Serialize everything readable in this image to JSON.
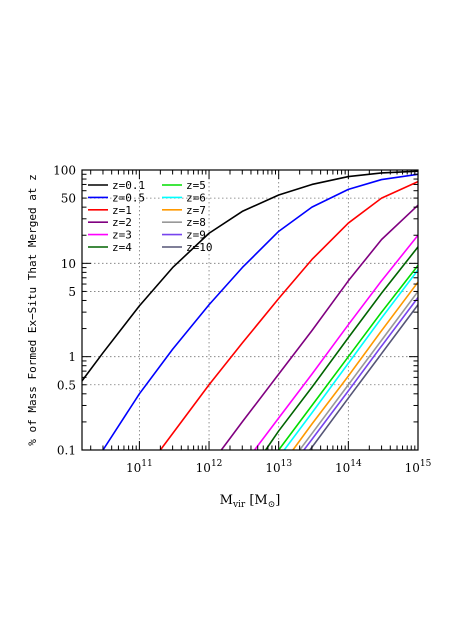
{
  "chart_data": {
    "type": "line",
    "title": "",
    "xlabel": "M_vir [M_⊙]",
    "xlabel_main": "M",
    "xlabel_sub": "vir",
    "xlabel_unit_open": " [M",
    "xlabel_unit_sub": "⊙",
    "xlabel_unit_close": "]",
    "ylabel": "% of Mass Formed Ex−Situ That Merged at z",
    "x_scale": "log",
    "y_scale": "log",
    "xlim": [
      15000000000,
      1000000000000000
    ],
    "ylim": [
      0.1,
      100
    ],
    "x_ticks": [
      {
        "value": 100000000000,
        "base": "10",
        "exp": "11"
      },
      {
        "value": 1000000000000,
        "base": "10",
        "exp": "12"
      },
      {
        "value": 10000000000000,
        "base": "10",
        "exp": "13"
      },
      {
        "value": 100000000000000,
        "base": "10",
        "exp": "14"
      },
      {
        "value": 1000000000000000,
        "base": "10",
        "exp": "15"
      }
    ],
    "y_ticks": [
      {
        "value": 0.1,
        "label": "0.1"
      },
      {
        "value": 0.5,
        "label": "0.5"
      },
      {
        "value": 1,
        "label": "1"
      },
      {
        "value": 5,
        "label": "5"
      },
      {
        "value": 10,
        "label": "10"
      },
      {
        "value": 50,
        "label": "50"
      },
      {
        "value": 100,
        "label": "100"
      }
    ],
    "grid": "dotted",
    "legend_position": "top-left",
    "series": [
      {
        "name": "z=0.1",
        "color": "#000000",
        "x": [
          15000000000.0,
          30000000000.0,
          100000000000.0,
          300000000000.0,
          1000000000000.0,
          3000000000000.0,
          10000000000000.0,
          30000000000000.0,
          100000000000000.0,
          300000000000000.0,
          1000000000000000.0
        ],
        "y": [
          0.55,
          1.1,
          3.5,
          9,
          21,
          36,
          54,
          70,
          85,
          93,
          97
        ]
      },
      {
        "name": "z=0.5",
        "color": "#0000ff",
        "x": [
          30000000000.0,
          100000000000.0,
          300000000000.0,
          1000000000000.0,
          3000000000000.0,
          10000000000000.0,
          30000000000000.0,
          100000000000000.0,
          300000000000000.0,
          1000000000000000.0
        ],
        "y": [
          0.1,
          0.4,
          1.2,
          3.6,
          9,
          22,
          40,
          62,
          79,
          90
        ]
      },
      {
        "name": "z=1",
        "color": "#ff0000",
        "x": [
          200000000000.0,
          500000000000.0,
          1000000000000.0,
          3000000000000.0,
          10000000000000.0,
          30000000000000.0,
          100000000000000.0,
          300000000000000.0,
          1000000000000000.0
        ],
        "y": [
          0.1,
          0.25,
          0.5,
          1.4,
          4.2,
          11,
          27,
          50,
          75
        ]
      },
      {
        "name": "z=2",
        "color": "#800080",
        "x": [
          1500000000000.0,
          3000000000000.0,
          10000000000000.0,
          30000000000000.0,
          100000000000000.0,
          300000000000000.0,
          1000000000000000.0
        ],
        "y": [
          0.1,
          0.2,
          0.65,
          1.9,
          6.5,
          18,
          42
        ]
      },
      {
        "name": "z=3",
        "color": "#ff00ff",
        "x": [
          4500000000000.0,
          10000000000000.0,
          30000000000000.0,
          100000000000000.0,
          300000000000000.0,
          1000000000000000.0
        ],
        "y": [
          0.1,
          0.22,
          0.65,
          2.2,
          6.5,
          20
        ]
      },
      {
        "name": "z=4",
        "color": "#006400",
        "x": [
          6500000000000.0,
          10000000000000.0,
          30000000000000.0,
          100000000000000.0,
          300000000000000.0,
          1000000000000000.0
        ],
        "y": [
          0.1,
          0.16,
          0.47,
          1.6,
          4.8,
          15
        ]
      },
      {
        "name": "z=5",
        "color": "#00dd00",
        "x": [
          10000000000000.0,
          30000000000000.0,
          100000000000000.0,
          300000000000000.0,
          1000000000000000.0
        ],
        "y": [
          0.1,
          0.3,
          1.0,
          3.0,
          9.5
        ]
      },
      {
        "name": "z=6",
        "color": "#00ffff",
        "x": [
          12000000000000.0,
          30000000000000.0,
          100000000000000.0,
          300000000000000.0,
          1000000000000000.0
        ],
        "y": [
          0.1,
          0.25,
          0.85,
          2.6,
          8.5
        ]
      },
      {
        "name": "z=7",
        "color": "#ff9900",
        "x": [
          16000000000000.0,
          30000000000000.0,
          100000000000000.0,
          300000000000000.0,
          1000000000000000.0
        ],
        "y": [
          0.1,
          0.19,
          0.62,
          1.9,
          6.3
        ]
      },
      {
        "name": "z=8",
        "color": "#999999",
        "x": [
          20000000000000.0,
          30000000000000.0,
          100000000000000.0,
          300000000000000.0,
          1000000000000000.0
        ],
        "y": [
          0.1,
          0.15,
          0.5,
          1.5,
          5.0
        ]
      },
      {
        "name": "z=9",
        "color": "#7744ee",
        "x": [
          23000000000000.0,
          30000000000000.0,
          100000000000000.0,
          300000000000000.0,
          1000000000000000.0
        ],
        "y": [
          0.1,
          0.13,
          0.43,
          1.3,
          4.3
        ]
      },
      {
        "name": "z=10",
        "color": "#555577",
        "x": [
          28000000000000.0,
          30000000000000.0,
          100000000000000.0,
          300000000000000.0,
          1000000000000000.0
        ],
        "y": [
          0.1,
          0.107,
          0.36,
          1.08,
          3.6
        ]
      }
    ]
  }
}
